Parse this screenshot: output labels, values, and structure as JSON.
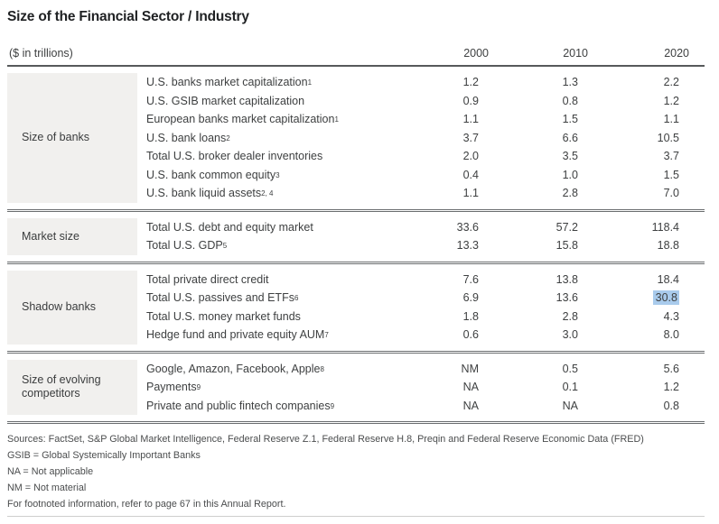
{
  "title": "Size of the Financial Sector / Industry",
  "table": {
    "unit_label": "($ in trillions)",
    "years": [
      "2000",
      "2010",
      "2020"
    ],
    "sections": [
      {
        "category": "Size of banks",
        "rows": [
          {
            "label": "U.S. banks market capitalization",
            "sup": "1",
            "values": [
              "1.2",
              "1.3",
              "2.2"
            ]
          },
          {
            "label": "U.S. GSIB market capitalization",
            "sup": "",
            "values": [
              "0.9",
              "0.8",
              "1.2"
            ]
          },
          {
            "label": "European banks market capitalization",
            "sup": "1",
            "values": [
              "1.1",
              "1.5",
              "1.1"
            ]
          },
          {
            "label": "U.S. bank loans",
            "sup": "2",
            "values": [
              "3.7",
              "6.6",
              "10.5"
            ]
          },
          {
            "label": "Total U.S. broker dealer inventories",
            "sup": "",
            "values": [
              "2.0",
              "3.5",
              "3.7"
            ]
          },
          {
            "label": "U.S. bank common equity",
            "sup": "3",
            "values": [
              "0.4",
              "1.0",
              "1.5"
            ]
          },
          {
            "label": "U.S. bank liquid assets",
            "sup": "2, 4",
            "values": [
              "1.1",
              "2.8",
              "7.0"
            ]
          }
        ]
      },
      {
        "category": "Market size",
        "rows": [
          {
            "label": "Total U.S. debt and equity market",
            "sup": "",
            "values": [
              "33.6",
              "57.2",
              "118.4"
            ]
          },
          {
            "label": "Total U.S. GDP",
            "sup": "5",
            "values": [
              "13.3",
              "15.8",
              "18.8"
            ]
          }
        ]
      },
      {
        "category": "Shadow banks",
        "rows": [
          {
            "label": "Total private direct credit",
            "sup": "",
            "values": [
              "7.6",
              "13.8",
              "18.4"
            ]
          },
          {
            "label": "Total U.S. passives and ETFs",
            "sup": "6",
            "values": [
              "6.9",
              "13.6",
              "30.8"
            ],
            "highlight_col": 2
          },
          {
            "label": "Total U.S. money market funds",
            "sup": "",
            "values": [
              "1.8",
              "2.8",
              "4.3"
            ]
          },
          {
            "label": "Hedge fund and private equity AUM",
            "sup": "7",
            "values": [
              "0.6",
              "3.0",
              "8.0"
            ]
          }
        ]
      },
      {
        "category": "Size of evolving competitors",
        "rows": [
          {
            "label": "Google, Amazon, Facebook, Apple",
            "sup": "8",
            "values": [
              "NM",
              "0.5",
              "5.6"
            ]
          },
          {
            "label": "Payments",
            "sup": "9",
            "values": [
              "NA",
              "0.1",
              "1.2"
            ]
          },
          {
            "label": "Private and public fintech companies",
            "sup": "9",
            "values": [
              "NA",
              "NA",
              "0.8"
            ]
          }
        ]
      }
    ]
  },
  "footnotes": [
    "Sources: FactSet, S&P Global Market Intelligence, Federal Reserve Z.1, Federal Reserve H.8, Preqin and Federal Reserve Economic Data (FRED)",
    "GSIB = Global Systemically Important Banks",
    "NA = Not applicable",
    "NM = Not material",
    "For footnoted information, refer to page 67 in this Annual Report."
  ],
  "colors": {
    "highlight": "#a9cbec",
    "category_bg": "#f1f0ee",
    "rule_dark": "#57595b"
  }
}
